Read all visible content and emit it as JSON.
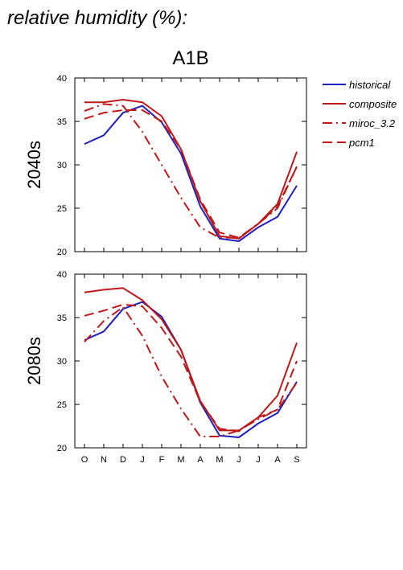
{
  "page_title": "relative humidity (%):",
  "chart_data": {
    "type": "line",
    "title": "A1B",
    "categories": [
      "O",
      "N",
      "D",
      "J",
      "F",
      "M",
      "A",
      "M",
      "J",
      "J",
      "A",
      "S"
    ],
    "ylim": [
      20,
      40
    ],
    "yticks": [
      20,
      25,
      30,
      35,
      40
    ],
    "grid": false,
    "legend_position": "top-right",
    "legend": [
      {
        "name": "historical",
        "color": "#1f1fbf",
        "dash": "solid"
      },
      {
        "name": "composite",
        "color": "#c01818",
        "dash": "solid"
      },
      {
        "name": "miroc_3.2",
        "color": "#c01818",
        "dash": "dashdot"
      },
      {
        "name": "pcm1",
        "color": "#c01818",
        "dash": "dashed"
      }
    ],
    "panels": [
      {
        "row_label": "2040s",
        "series": [
          {
            "name": "historical",
            "values": [
              32.4,
              33.4,
              36.0,
              36.8,
              34.9,
              31.3,
              25.2,
              21.5,
              21.2,
              22.8,
              24.0,
              27.6
            ]
          },
          {
            "name": "composite",
            "values": [
              37.2,
              37.2,
              37.5,
              37.2,
              35.6,
              31.8,
              25.8,
              21.8,
              21.5,
              23.2,
              25.5,
              31.5
            ]
          },
          {
            "name": "miroc_3.2",
            "values": [
              36.2,
              37.0,
              36.8,
              33.8,
              30.0,
              26.2,
              22.8,
              21.6,
              21.6,
              23.2,
              25.0,
              29.8
            ]
          },
          {
            "name": "pcm1",
            "values": [
              35.3,
              36.0,
              36.3,
              36.3,
              35.0,
              31.8,
              26.0,
              22.2,
              21.6,
              23.2,
              25.2,
              29.8
            ]
          }
        ]
      },
      {
        "row_label": "2080s",
        "series": [
          {
            "name": "historical",
            "values": [
              32.4,
              33.4,
              36.0,
              36.8,
              35.1,
              31.3,
              25.2,
              21.4,
              21.2,
              22.8,
              24.0,
              27.6
            ]
          },
          {
            "name": "composite",
            "values": [
              37.9,
              38.2,
              38.4,
              37.0,
              34.8,
              31.3,
              25.4,
              22.0,
              22.0,
              23.5,
              26.0,
              32.1
            ]
          },
          {
            "name": "miroc_3.2",
            "values": [
              32.2,
              34.6,
              36.2,
              32.9,
              28.2,
              24.5,
              21.3,
              21.3,
              22.0,
              23.3,
              24.4,
              27.5
            ]
          },
          {
            "name": "pcm1",
            "values": [
              35.2,
              35.8,
              36.5,
              36.3,
              33.8,
              30.5,
              25.3,
              22.2,
              21.9,
              23.5,
              24.4,
              30.0
            ]
          }
        ]
      }
    ]
  }
}
